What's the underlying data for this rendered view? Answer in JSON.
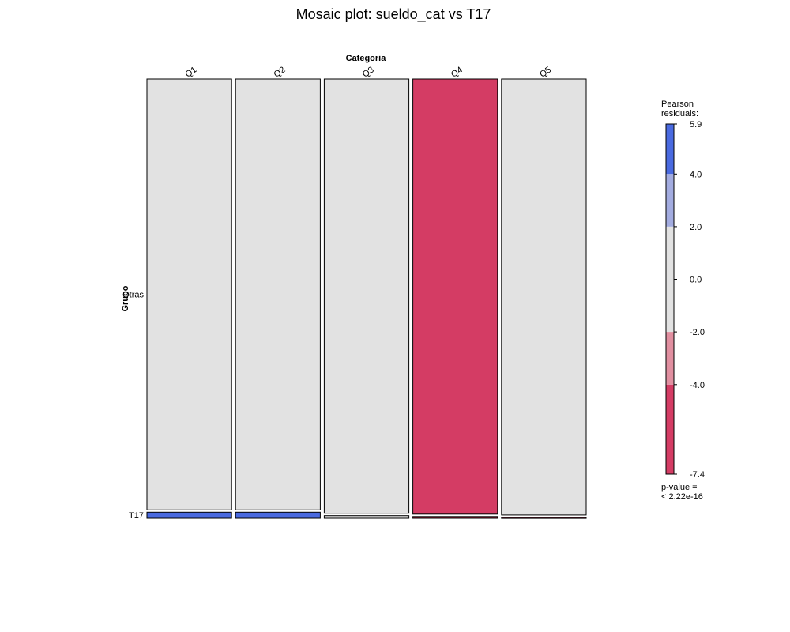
{
  "chart_data": {
    "type": "mosaic",
    "title": "Mosaic plot: sueldo_cat vs T17",
    "xlabel": "Categoria",
    "ylabel": "Grupo",
    "x_categories": [
      "Q1",
      "Q2",
      "Q3",
      "Q4",
      "Q5"
    ],
    "y_categories": [
      "Otras",
      "T17"
    ],
    "column_proportions": [
      0.2,
      0.2,
      0.2,
      0.2,
      0.2
    ],
    "cells": [
      {
        "x": "Q1",
        "y": "Otras",
        "proportion": 0.986,
        "residual_level": "neutral"
      },
      {
        "x": "Q1",
        "y": "T17",
        "proportion": 0.014,
        "residual_level": "above 4"
      },
      {
        "x": "Q2",
        "y": "Otras",
        "proportion": 0.986,
        "residual_level": "neutral"
      },
      {
        "x": "Q2",
        "y": "T17",
        "proportion": 0.014,
        "residual_level": "above 4"
      },
      {
        "x": "Q3",
        "y": "Otras",
        "proportion": 0.994,
        "residual_level": "neutral"
      },
      {
        "x": "Q3",
        "y": "T17",
        "proportion": 0.006,
        "residual_level": "neutral"
      },
      {
        "x": "Q4",
        "y": "Otras",
        "proportion": 0.996,
        "residual_level": "below -4"
      },
      {
        "x": "Q4",
        "y": "T17",
        "proportion": 0.004,
        "residual_level": "below -4"
      },
      {
        "x": "Q5",
        "y": "Otras",
        "proportion": 0.998,
        "residual_level": "neutral"
      },
      {
        "x": "Q5",
        "y": "T17",
        "proportion": 0.002,
        "residual_level": "below -4"
      }
    ],
    "legend": {
      "title_line1": "Pearson",
      "title_line2": "residuals:",
      "placement": "right",
      "min": -7.4,
      "max": 5.9,
      "ticks": [
        "5.9",
        "4.0",
        "2.0",
        "0.0",
        "-2.0",
        "-4.0",
        "-7.4"
      ],
      "tick_values": [
        5.9,
        4.0,
        2.0,
        0.0,
        -2.0,
        -4.0,
        -7.4
      ],
      "bands": [
        {
          "from": 4,
          "to": 5.9,
          "color": "#4a6ae0"
        },
        {
          "from": 2,
          "to": 4,
          "color": "#a3ace0"
        },
        {
          "from": -2,
          "to": 2,
          "color": "#e2e2e2"
        },
        {
          "from": -4,
          "to": -2,
          "color": "#e18fa0"
        },
        {
          "from": -7.4,
          "to": -4,
          "color": "#d43c64"
        }
      ],
      "pvalue_line1": "p-value =",
      "pvalue_line2": "< 2.22e-16"
    },
    "colors": {
      "above 4": "#4a6ae0",
      "neutral": "#e2e2e2",
      "below -4": "#d43c64",
      "below -4-dark": "#8a1c2e"
    }
  }
}
